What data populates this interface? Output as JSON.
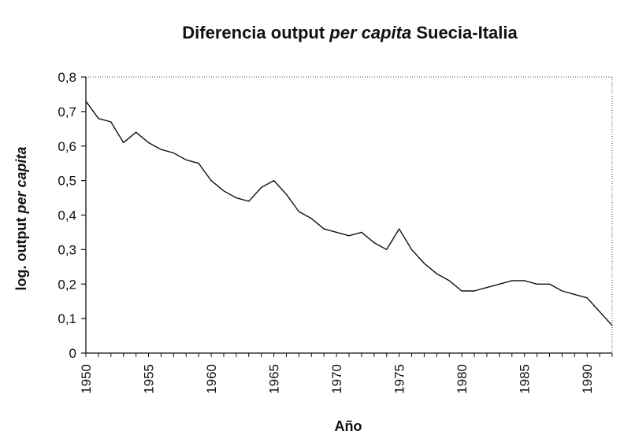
{
  "chart_data": {
    "type": "line",
    "title_parts": [
      {
        "text": "Diferencia output ",
        "italic": false
      },
      {
        "text": "per capita",
        "italic": true
      },
      {
        "text": " Suecia-Italia",
        "italic": false
      }
    ],
    "xlabel": "Año",
    "ylabel_parts": [
      {
        "text": "log. output ",
        "italic": false
      },
      {
        "text": "per capita",
        "italic": true
      }
    ],
    "xlim": [
      1950,
      1992
    ],
    "ylim": [
      0,
      0.8
    ],
    "x_ticks": [
      1950,
      1955,
      1960,
      1965,
      1970,
      1975,
      1980,
      1985,
      1990
    ],
    "y_ticks": [
      {
        "value": 0,
        "label": "0"
      },
      {
        "value": 0.1,
        "label": "0,1"
      },
      {
        "value": 0.2,
        "label": "0,2"
      },
      {
        "value": 0.3,
        "label": "0,3"
      },
      {
        "value": 0.4,
        "label": "0,4"
      },
      {
        "value": 0.5,
        "label": "0,5"
      },
      {
        "value": 0.6,
        "label": "0,6"
      },
      {
        "value": 0.7,
        "label": "0,7"
      },
      {
        "value": 0.8,
        "label": "0,8"
      }
    ],
    "grid": false,
    "series": [
      {
        "color": "#111111",
        "x": [
          1950,
          1951,
          1952,
          1953,
          1954,
          1955,
          1956,
          1957,
          1958,
          1959,
          1960,
          1961,
          1962,
          1963,
          1964,
          1965,
          1966,
          1967,
          1968,
          1969,
          1970,
          1971,
          1972,
          1973,
          1974,
          1975,
          1976,
          1977,
          1978,
          1979,
          1980,
          1981,
          1982,
          1983,
          1984,
          1985,
          1986,
          1987,
          1988,
          1989,
          1990,
          1991,
          1992
        ],
        "values": [
          0.73,
          0.68,
          0.67,
          0.61,
          0.64,
          0.61,
          0.59,
          0.58,
          0.56,
          0.55,
          0.5,
          0.47,
          0.45,
          0.44,
          0.48,
          0.5,
          0.46,
          0.41,
          0.39,
          0.36,
          0.35,
          0.34,
          0.35,
          0.32,
          0.3,
          0.36,
          0.3,
          0.26,
          0.23,
          0.21,
          0.18,
          0.18,
          0.19,
          0.2,
          0.21,
          0.21,
          0.2,
          0.2,
          0.18,
          0.17,
          0.16,
          0.12,
          0.08
        ]
      }
    ]
  }
}
